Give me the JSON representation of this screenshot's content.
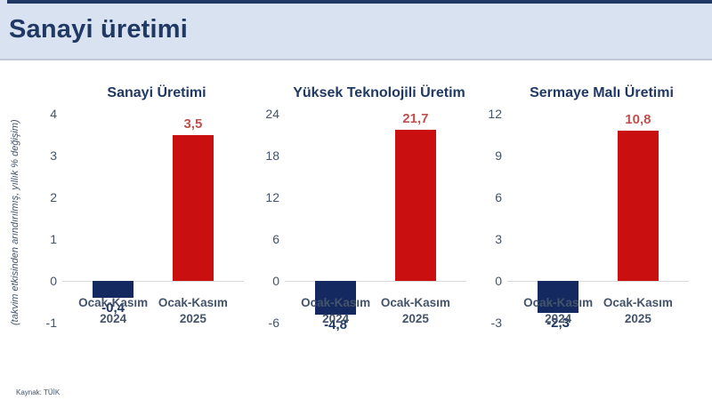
{
  "header": {
    "title": "Sanayi üretimi"
  },
  "y_axis_note": "(takvim etkisinden arındırılmış, yıllık % değişim)",
  "source": "Kaynak: TÜİK",
  "colors": {
    "header_bg": "#D9E2F0",
    "accent_navy": "#1F3864",
    "bar_2024": "#13295F",
    "bar_2025": "#C90F0F",
    "value_label_2024": "#1F3864",
    "value_label_2025": "#C0504D",
    "tick_text": "#44546A",
    "gridline": "#D9D9D9"
  },
  "chart_data": [
    {
      "type": "bar",
      "title": "Sanayi Üretimi",
      "categories": [
        "Ocak-Kasım 2024",
        "Ocak-Kasım 2025"
      ],
      "category_lines": [
        [
          "Ocak-Kasım",
          "2024"
        ],
        [
          "Ocak-Kasım",
          "2025"
        ]
      ],
      "values": [
        -0.4,
        3.5
      ],
      "value_labels": [
        "-0,4",
        "3,5"
      ],
      "yticks": [
        4,
        3,
        2,
        1,
        0,
        -1
      ],
      "ylim": [
        -1.32,
        4.18
      ],
      "grid": false,
      "legend": false
    },
    {
      "type": "bar",
      "title": "Yüksek Teknolojili Üretim",
      "categories": [
        "Ocak-Kasım 2024",
        "Ocak-Kasım 2025"
      ],
      "category_lines": [
        [
          "Ocak-Kasım",
          "2024"
        ],
        [
          "Ocak-Kasım",
          "2025"
        ]
      ],
      "values": [
        -4.8,
        21.7
      ],
      "value_labels": [
        "-4,8",
        "21,7"
      ],
      "yticks": [
        24,
        18,
        12,
        6,
        0,
        -6
      ],
      "ylim": [
        -7.92,
        25.08
      ],
      "grid": false,
      "legend": false
    },
    {
      "type": "bar",
      "title": "Sermaye Malı Üretimi",
      "categories": [
        "Ocak-Kasım 2024",
        "Ocak-Kasım 2025"
      ],
      "category_lines": [
        [
          "Ocak-Kasım",
          "2024"
        ],
        [
          "Ocak-Kasım",
          "2025"
        ]
      ],
      "values": [
        -2.3,
        10.8
      ],
      "value_labels": [
        "-2,3",
        "10,8"
      ],
      "yticks": [
        12,
        9,
        6,
        3,
        0,
        -3
      ],
      "ylim": [
        -3.96,
        12.54
      ],
      "grid": false,
      "legend": false
    }
  ]
}
